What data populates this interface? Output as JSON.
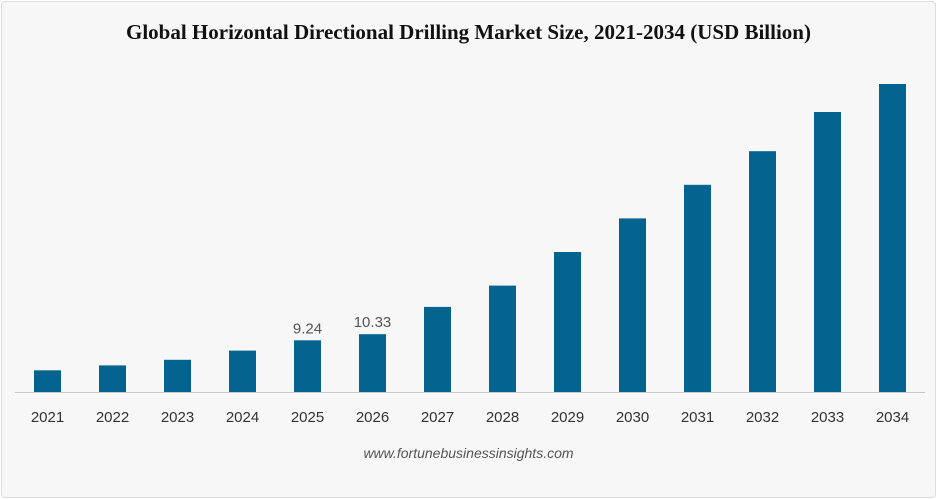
{
  "chart_data": {
    "type": "bar",
    "title": "Global Horizontal Directional Drilling Market Size, 2021-2034 (USD Billion)",
    "xlabel": "",
    "ylabel": "",
    "categories": [
      "2021",
      "2022",
      "2023",
      "2024",
      "2025",
      "2026",
      "2027",
      "2028",
      "2029",
      "2030",
      "2031",
      "2032",
      "2033",
      "2034"
    ],
    "values": [
      3.88,
      4.75,
      5.75,
      7.4,
      9.24,
      10.33,
      15.2,
      19.0,
      25.0,
      31.0,
      37.0,
      43.0,
      50.0,
      55.0
    ],
    "data_labels": {
      "2025": "9.24",
      "2026": "10.33"
    },
    "ylim": [
      0,
      55
    ],
    "grid": false,
    "bar_color": "#05648f"
  },
  "source": "www.fortunebusinessinsights.com"
}
